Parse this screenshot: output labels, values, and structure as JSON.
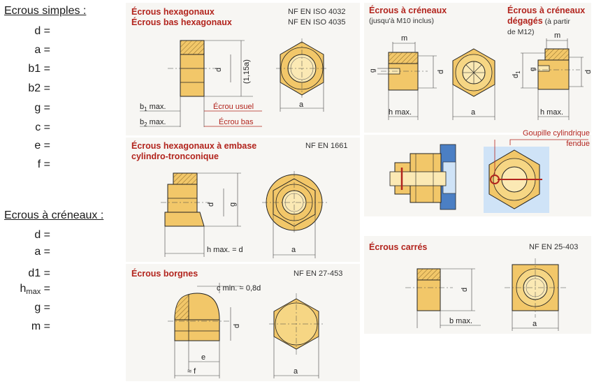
{
  "left": {
    "simple_title": "Ecrous simples :",
    "simple_rows": [
      "d =",
      "a =",
      "b1 =",
      "b2 =",
      "g =",
      "c =",
      "e =",
      "f ="
    ],
    "crenel_title": "Ecrous à créneaux :",
    "crenel_rows": [
      "d =",
      "a =",
      "d1 ="
    ],
    "hmax_h": "h",
    "hmax_sub": "max",
    "hmax_eq": " =",
    "crenel_rows2": [
      "g =",
      "m ="
    ]
  },
  "hex": {
    "title_1": "Écrous hexagonaux",
    "title_2": "Écrous bas hexagonaux",
    "norm_1": "NF EN ISO 4032",
    "norm_2": "NF EN ISO 4035",
    "lbl_d": "d",
    "lbl_115a": "(1,15a)",
    "lbl_a": "a",
    "lbl_b1": "b",
    "lbl_b1_sub": "1",
    "lbl_b1_max": " max.",
    "lbl_b2": "b",
    "lbl_b2_sub": "2",
    "lbl_b2_max": " max.",
    "lbl_usuel": "Écrou usuel",
    "lbl_bas": "Écrou bas"
  },
  "embase": {
    "title_1": "Écrous hexagonaux à embase",
    "title_2": "cylindro-tronconique",
    "norm": "NF EN 1661",
    "lbl_d": "d",
    "lbl_g": "g",
    "lbl_hmax": "h max. = d",
    "lbl_a": "a"
  },
  "borgne": {
    "title": "Écrous borgnes",
    "norm": "NF EN 27-453",
    "lbl_cmin": "c min. = 0,8d",
    "lbl_d": "d",
    "lbl_e": "e",
    "lbl_f": "≈ f",
    "lbl_a": "a"
  },
  "creneaux": {
    "title": "Écrous à créneaux",
    "subtitle": "(jusqu'à M10 inclus)",
    "lbl_m": "m",
    "lbl_g": "g",
    "lbl_d": "d",
    "lbl_hmax": "h max.",
    "lbl_a": "a"
  },
  "degages": {
    "title_1": "Écrous à créneaux",
    "title_2": "dégagés",
    "subtitle_1": " (à partir",
    "subtitle_2": "de M12)",
    "lbl_m": "m",
    "lbl_d1": "d",
    "lbl_d1_sub": "1",
    "lbl_g": "g",
    "lbl_d": "d",
    "lbl_hmax": "h max."
  },
  "goupille": {
    "label_1": "Goupille cylindrique",
    "label_2": "fendue"
  },
  "carres": {
    "title": "Écrous carrés",
    "norm": "NF EN 25-403",
    "lbl_d": "d",
    "lbl_bmax": "b max.",
    "lbl_a": "a"
  },
  "colors": {
    "nut_fill": "#f2c769",
    "nut_dark": "#c99a3a",
    "hole_fill": "#fbe9b4",
    "red": "#b2241d",
    "blue": "#4b7fc4",
    "light_blue": "#cfe3f7"
  }
}
